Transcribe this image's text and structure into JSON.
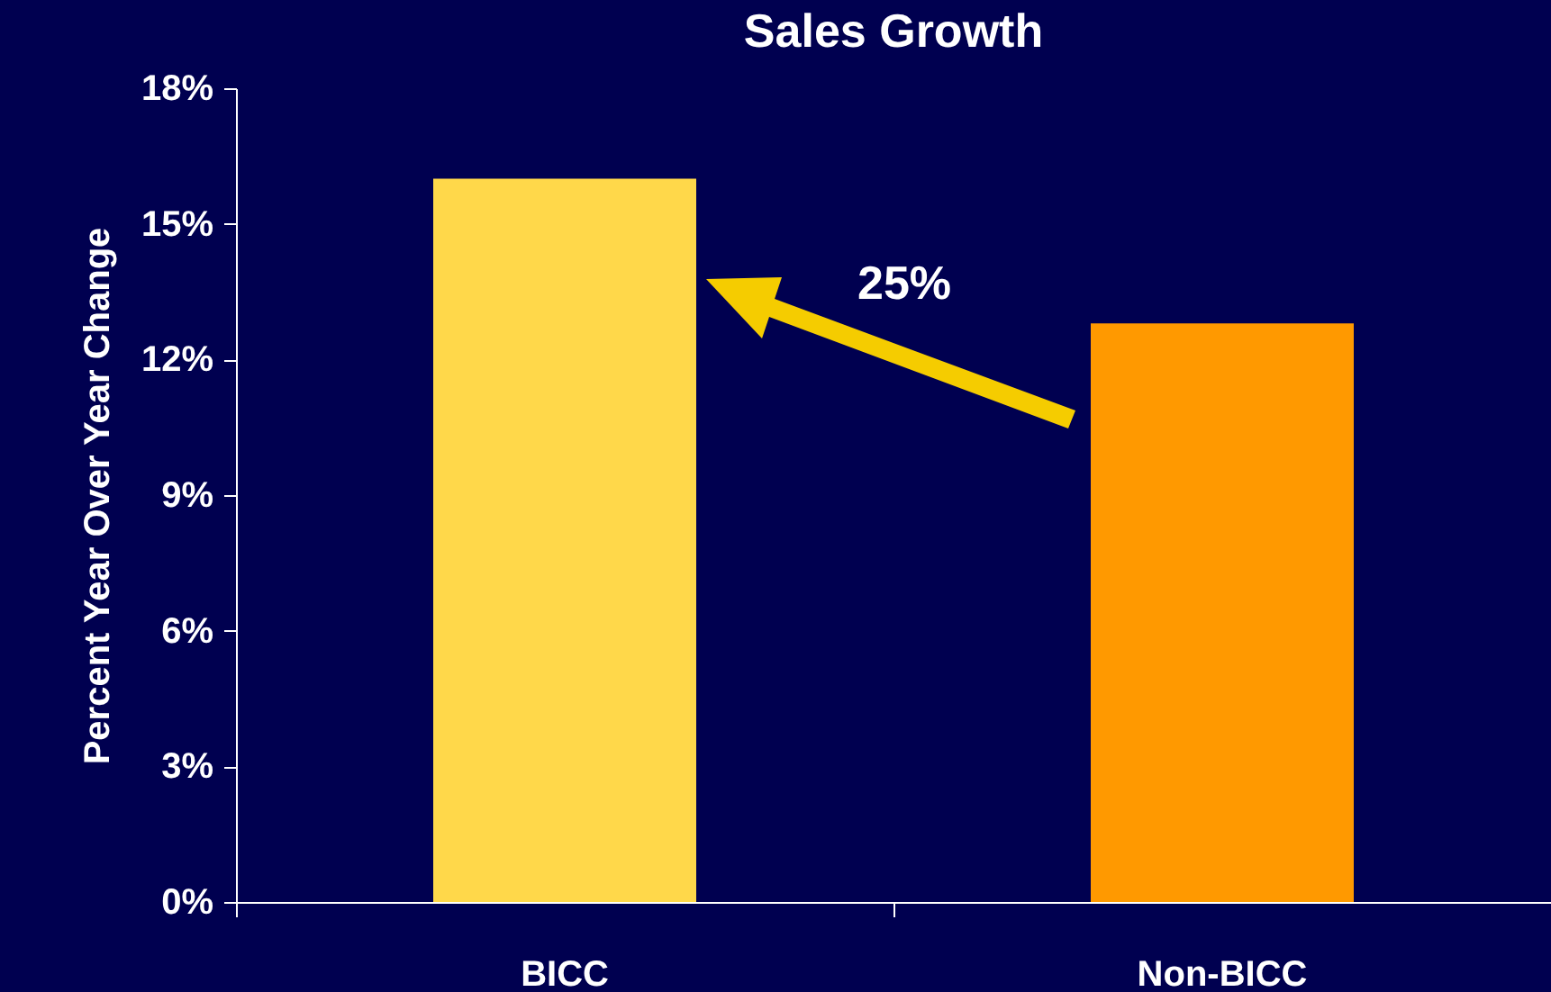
{
  "chart_data": {
    "type": "bar",
    "title": "Sales Growth",
    "ylabel": "Percent Year Over Year Change",
    "categories": [
      "BICC",
      "Non-BICC"
    ],
    "values": [
      16,
      12.8
    ],
    "colors": [
      "#ffd84a",
      "#ff9900"
    ],
    "ylim": [
      0,
      18
    ],
    "yticks": [
      {
        "value": 0,
        "label": "0%"
      },
      {
        "value": 3,
        "label": "3%"
      },
      {
        "value": 6,
        "label": "6%"
      },
      {
        "value": 9,
        "label": "9%"
      },
      {
        "value": 12,
        "label": "12%"
      },
      {
        "value": 15,
        "label": "15%"
      },
      {
        "value": 18,
        "label": "18%"
      }
    ],
    "grid": false,
    "annotations": [
      "25%"
    ]
  }
}
